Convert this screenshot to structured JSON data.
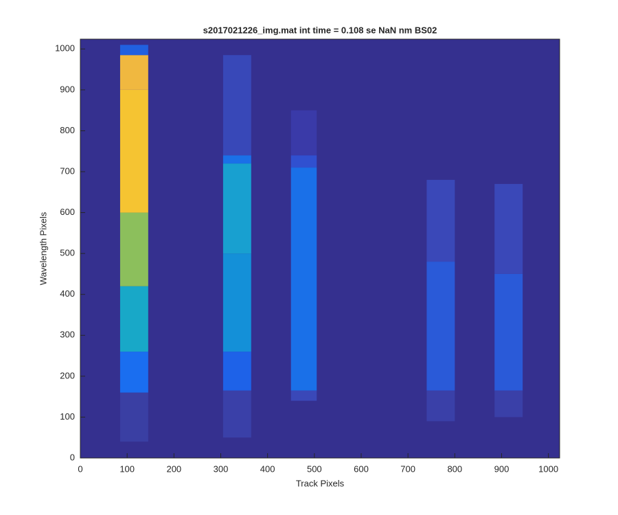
{
  "chart_data": {
    "type": "image",
    "title": "s2017021226_img.mat int time = 0.108 se  NaN nm BS02",
    "xlabel": "Track Pixels",
    "ylabel": "Wavelength Pixels",
    "xlim": [
      0,
      1024
    ],
    "ylim": [
      0,
      1024
    ],
    "xticks": [
      0,
      100,
      200,
      300,
      400,
      500,
      600,
      700,
      800,
      900,
      1000
    ],
    "yticks": [
      0,
      100,
      200,
      300,
      400,
      500,
      600,
      700,
      800,
      900,
      1000
    ],
    "background": "#35308f",
    "regions": [
      {
        "xlim": [
          85,
          145
        ],
        "segments": [
          {
            "ylim": [
              40,
              160
            ],
            "color": "#3a3fa3"
          },
          {
            "ylim": [
              160,
              260
            ],
            "color": "#1a6ef0"
          },
          {
            "ylim": [
              260,
              420
            ],
            "color": "#18a8c8"
          },
          {
            "ylim": [
              420,
              600
            ],
            "color": "#8cbf5c"
          },
          {
            "ylim": [
              600,
              900
            ],
            "color": "#f5c432"
          },
          {
            "ylim": [
              900,
              985
            ],
            "color": "#f0b840"
          },
          {
            "ylim": [
              985,
              1010
            ],
            "color": "#2060e0"
          }
        ]
      },
      {
        "xlim": [
          305,
          365
        ],
        "segments": [
          {
            "ylim": [
              50,
              165
            ],
            "color": "#3a40a8"
          },
          {
            "ylim": [
              165,
              260
            ],
            "color": "#1e62e8"
          },
          {
            "ylim": [
              260,
              500
            ],
            "color": "#1490d8"
          },
          {
            "ylim": [
              500,
              720
            ],
            "color": "#18a0d0"
          },
          {
            "ylim": [
              720,
              740
            ],
            "color": "#1a70e8"
          },
          {
            "ylim": [
              740,
              985
            ],
            "color": "#3848b8"
          }
        ]
      },
      {
        "xlim": [
          450,
          505
        ],
        "segments": [
          {
            "ylim": [
              140,
              165
            ],
            "color": "#3a48b8"
          },
          {
            "ylim": [
              165,
              710
            ],
            "color": "#1a70e8"
          },
          {
            "ylim": [
              710,
              740
            ],
            "color": "#3050d0"
          },
          {
            "ylim": [
              740,
              850
            ],
            "color": "#3a3aa8"
          }
        ]
      },
      {
        "xlim": [
          740,
          800
        ],
        "segments": [
          {
            "ylim": [
              90,
              165
            ],
            "color": "#3a40a8"
          },
          {
            "ylim": [
              165,
              480
            ],
            "color": "#2a5ad8"
          },
          {
            "ylim": [
              480,
              680
            ],
            "color": "#3a48b8"
          }
        ]
      },
      {
        "xlim": [
          885,
          945
        ],
        "segments": [
          {
            "ylim": [
              100,
              165
            ],
            "color": "#3a40a8"
          },
          {
            "ylim": [
              165,
              450
            ],
            "color": "#2a5ad8"
          },
          {
            "ylim": [
              450,
              670
            ],
            "color": "#3a48b8"
          }
        ]
      }
    ]
  }
}
